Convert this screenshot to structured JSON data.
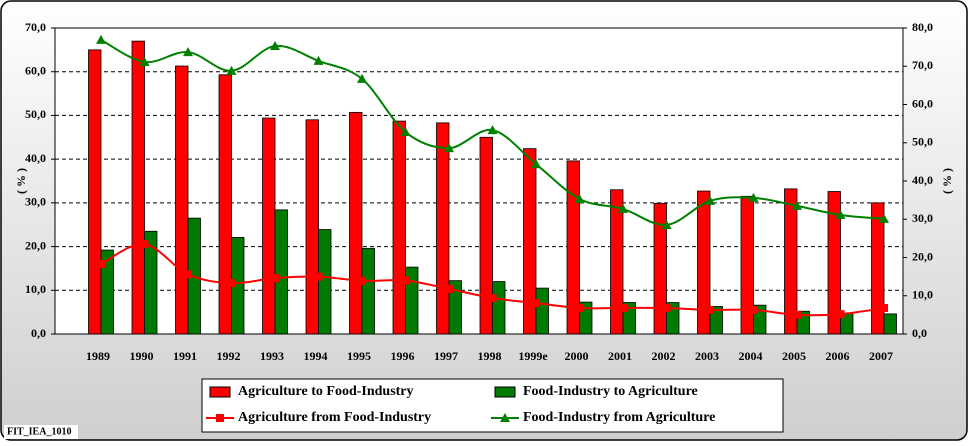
{
  "chart_data": {
    "type": "bar-line",
    "categories": [
      "1989",
      "1990",
      "1991",
      "1992",
      "1993",
      "1994",
      "1995",
      "1996",
      "1997",
      "1998",
      "1999e",
      "2000",
      "2001",
      "2002",
      "2003",
      "2004",
      "2005",
      "2006",
      "2007"
    ],
    "series": [
      {
        "name": "Agriculture to Food-Industry",
        "type": "bar",
        "color": "#ff0000",
        "axis": "y",
        "values": [
          65,
          67,
          61.3,
          59.3,
          49.4,
          49,
          50.7,
          48.7,
          48.3,
          45,
          42.4,
          39.6,
          33,
          29.9,
          32.7,
          31.5,
          33.2,
          32.6,
          30
        ]
      },
      {
        "name": "Food-Industry to Agriculture",
        "type": "bar",
        "color": "#007a00",
        "axis": "y",
        "values": [
          19.2,
          23.5,
          26.5,
          22.1,
          28.4,
          23.9,
          19.6,
          15.3,
          12.2,
          12,
          10.5,
          7.3,
          7.2,
          7.2,
          6.3,
          6.6,
          5.2,
          4.7,
          4.6
        ]
      },
      {
        "name": "Agriculture from Food-Industry",
        "type": "line",
        "color": "#ff0000",
        "axis": "y2",
        "values": [
          18.3,
          23.5,
          15.6,
          13.3,
          14.6,
          15,
          13.9,
          14,
          11.8,
          9.4,
          8.1,
          6.8,
          6.8,
          6.8,
          6.3,
          6.3,
          5,
          5.2,
          6.8
        ]
      },
      {
        "name": "Food-Industry from Agriculture",
        "type": "line",
        "color": "#008000",
        "axis": "y2",
        "values": [
          76.9,
          71.1,
          73.7,
          68.8,
          75.3,
          71.4,
          66.7,
          52.8,
          48.6,
          53.3,
          44.4,
          35.3,
          32.7,
          28.5,
          34.8,
          35.6,
          33.5,
          31.1,
          30.1
        ]
      }
    ],
    "ylabel": "( % )",
    "y2label": "( % )",
    "ylim": [
      0,
      70
    ],
    "yticks": [
      {
        "value": 0,
        "label": "0,0"
      },
      {
        "value": 10,
        "label": "10,0"
      },
      {
        "value": 20,
        "label": "20,0"
      },
      {
        "value": 30,
        "label": "30,0"
      },
      {
        "value": 40,
        "label": "40,0"
      },
      {
        "value": 50,
        "label": "50,0"
      },
      {
        "value": 60,
        "label": "60,0"
      },
      {
        "value": 70,
        "label": "70,0"
      }
    ],
    "y2lim": [
      0,
      80
    ],
    "y2ticks": [
      {
        "value": 0,
        "label": "0,0"
      },
      {
        "value": 10,
        "label": "10,0"
      },
      {
        "value": 20,
        "label": "20,0"
      },
      {
        "value": 30,
        "label": "30,0"
      },
      {
        "value": 40,
        "label": "40,0"
      },
      {
        "value": 50,
        "label": "50,0"
      },
      {
        "value": 60,
        "label": "60,0"
      },
      {
        "value": 70,
        "label": "70,0"
      },
      {
        "value": 80,
        "label": "80,0"
      }
    ],
    "grid": true,
    "legend": "bottom",
    "footnote": "FIT_IEA_1010"
  }
}
